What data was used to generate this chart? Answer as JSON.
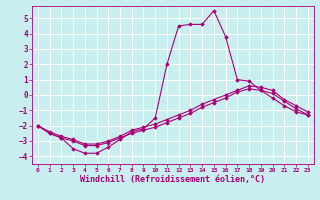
{
  "xlabel": "Windchill (Refroidissement éolien,°C)",
  "bg_color": "#c8eef0",
  "grid_color": "#ffffff",
  "line_color": "#aa0077",
  "marker_color": "#aa0077",
  "xlim": [
    -0.5,
    23.5
  ],
  "ylim": [
    -4.5,
    5.8
  ],
  "yticks": [
    -4,
    -3,
    -2,
    -1,
    0,
    1,
    2,
    3,
    4,
    5
  ],
  "xticks": [
    0,
    1,
    2,
    3,
    4,
    5,
    6,
    7,
    8,
    9,
    10,
    11,
    12,
    13,
    14,
    15,
    16,
    17,
    18,
    19,
    20,
    21,
    22,
    23
  ],
  "series1_x": [
    0,
    1,
    2,
    3,
    4,
    5,
    6,
    7,
    8,
    9,
    10,
    11,
    12,
    13,
    14,
    15,
    16,
    17,
    18,
    19,
    20,
    21,
    22,
    23
  ],
  "series1_y": [
    -2.0,
    -2.5,
    -2.8,
    -3.5,
    -3.8,
    -3.8,
    -3.4,
    -2.9,
    -2.4,
    -2.2,
    -1.5,
    2.0,
    4.5,
    4.6,
    4.6,
    5.5,
    3.8,
    1.0,
    0.9,
    0.3,
    -0.2,
    -0.7,
    -1.1,
    -1.3
  ],
  "series2_x": [
    0,
    1,
    2,
    3,
    4,
    5,
    6,
    7,
    8,
    9,
    10,
    11,
    12,
    13,
    14,
    15,
    16,
    17,
    18,
    19,
    20,
    21,
    22,
    23
  ],
  "series2_y": [
    -2.0,
    -2.5,
    -2.8,
    -3.0,
    -3.3,
    -3.3,
    -3.1,
    -2.8,
    -2.5,
    -2.3,
    -2.1,
    -1.8,
    -1.5,
    -1.2,
    -0.8,
    -0.5,
    -0.2,
    0.2,
    0.4,
    0.3,
    0.1,
    -0.4,
    -0.9,
    -1.3
  ],
  "series3_x": [
    0,
    1,
    2,
    3,
    4,
    5,
    6,
    7,
    8,
    9,
    10,
    11,
    12,
    13,
    14,
    15,
    16,
    17,
    18,
    19,
    20,
    21,
    22,
    23
  ],
  "series3_y": [
    -2.0,
    -2.4,
    -2.7,
    -2.9,
    -3.2,
    -3.2,
    -3.0,
    -2.7,
    -2.3,
    -2.1,
    -1.9,
    -1.6,
    -1.3,
    -1.0,
    -0.6,
    -0.3,
    0.0,
    0.3,
    0.6,
    0.5,
    0.3,
    -0.3,
    -0.7,
    -1.1
  ],
  "tick_fontsize": 5.5,
  "xlabel_fontsize": 6.0
}
